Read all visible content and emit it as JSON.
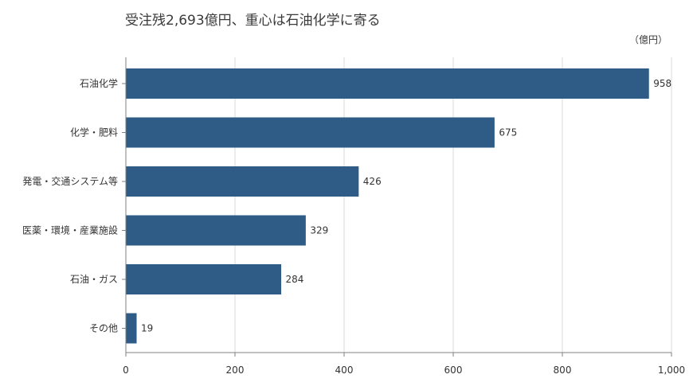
{
  "chart_data": {
    "type": "bar",
    "orientation": "horizontal",
    "title": "受注残2,693億円、重心は石油化学に寄る",
    "unit_label": "（億円）",
    "categories": [
      "石油化学",
      "化学・肥料",
      "発電・交通システム等",
      "医薬・環境・産業施設",
      "石油・ガス",
      "その他"
    ],
    "values": [
      958,
      675,
      426,
      329,
      284,
      19
    ],
    "xlim": [
      0,
      1000
    ],
    "x_ticks": [
      0,
      200,
      400,
      600,
      800,
      1000
    ],
    "x_tick_labels": [
      "0",
      "200",
      "400",
      "600",
      "800",
      "1,000"
    ],
    "grid": "vertical",
    "legend": "none",
    "bar_color": "#2e5c87"
  }
}
